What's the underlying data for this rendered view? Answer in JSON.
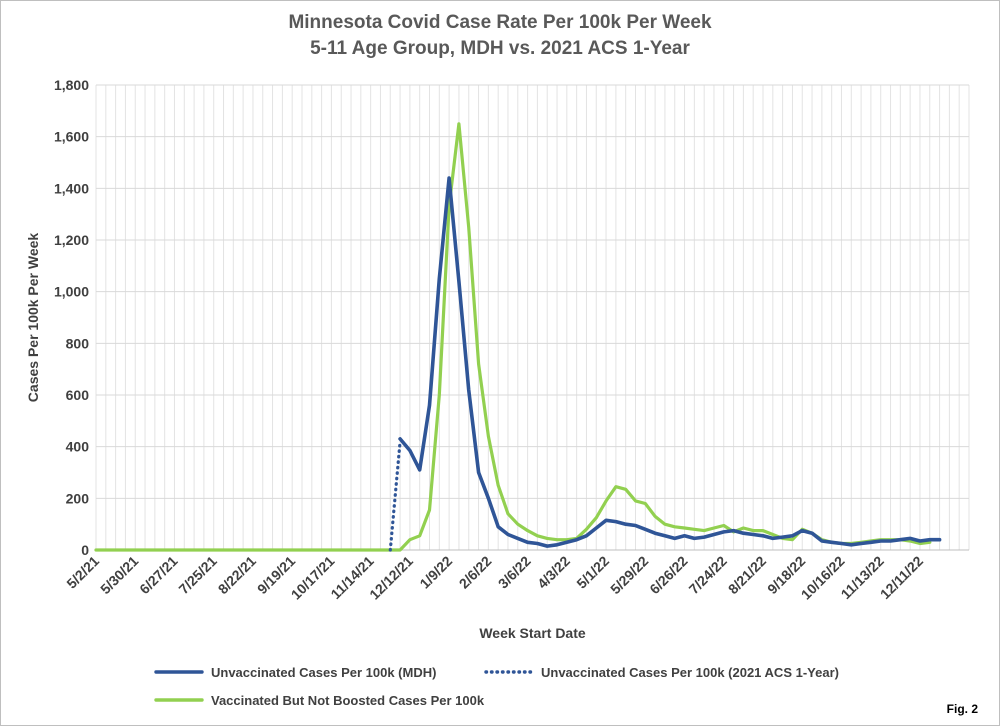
{
  "title_line1": "Minnesota Covid Case Rate Per 100k Per Week",
  "title_line2": "5-11 Age Group, MDH vs. 2021 ACS 1-Year",
  "fig_label": "Fig. 2",
  "chart_data": {
    "type": "line",
    "xlabel": "Week Start Date",
    "ylabel": "Cases Per 100k Per Week",
    "ylim": [
      0,
      1800
    ],
    "yticks": [
      0,
      200,
      400,
      600,
      800,
      1000,
      1200,
      1400,
      1600,
      1800
    ],
    "ytick_labels": [
      "0",
      "200",
      "400",
      "600",
      "800",
      "1,000",
      "1,200",
      "1,400",
      "1,600",
      "1,800"
    ],
    "xtick_labels": [
      "5/2/21",
      "5/30/21",
      "6/27/21",
      "7/25/21",
      "8/22/21",
      "9/19/21",
      "10/17/21",
      "11/14/21",
      "12/12/21",
      "1/9/22",
      "2/6/22",
      "3/6/22",
      "4/3/22",
      "5/1/22",
      "5/29/22",
      "6/26/22",
      "7/24/22",
      "8/21/22",
      "9/18/22",
      "10/16/22",
      "11/13/22",
      "12/11/22"
    ],
    "x_start": "5/2/21",
    "x_interval": "1 week",
    "x_count": 90,
    "grid": true,
    "legend_position": "bottom",
    "series": [
      {
        "name": "Unvaccinated Cases Per 100k (MDH)",
        "color": "#2f5597",
        "style": "solid",
        "start_index": 31,
        "values": [
          430,
          385,
          310,
          560,
          1050,
          1440,
          1040,
          620,
          300,
          200,
          90,
          60,
          45,
          30,
          25,
          15,
          20,
          30,
          40,
          55,
          85,
          115,
          110,
          100,
          95,
          80,
          65,
          55,
          45,
          55,
          45,
          50,
          60,
          70,
          75,
          65,
          60,
          55,
          45,
          50,
          55,
          75,
          65,
          35,
          30,
          25,
          20,
          25,
          30,
          35,
          35,
          40,
          45,
          35,
          40,
          40
        ]
      },
      {
        "name": "Unvaccinated Cases Per 100k (2021 ACS 1-Year)",
        "color": "#2f5597",
        "style": "dotted",
        "start_index": 30,
        "values": [
          0,
          420
        ]
      },
      {
        "name": "Vaccinated But Not Boosted Cases Per 100k",
        "color": "#92d050",
        "style": "solid",
        "start_index": 0,
        "values": [
          0,
          0,
          0,
          0,
          0,
          0,
          0,
          0,
          0,
          0,
          0,
          0,
          0,
          0,
          0,
          0,
          0,
          0,
          0,
          0,
          0,
          0,
          0,
          0,
          0,
          0,
          0,
          0,
          0,
          0,
          0,
          0,
          40,
          55,
          155,
          600,
          1330,
          1650,
          1250,
          720,
          440,
          250,
          140,
          100,
          75,
          55,
          45,
          40,
          40,
          45,
          80,
          125,
          190,
          245,
          235,
          190,
          180,
          130,
          100,
          90,
          85,
          80,
          75,
          85,
          95,
          70,
          85,
          75,
          75,
          60,
          45,
          40,
          80,
          65,
          40,
          30,
          25,
          25,
          30,
          35,
          40,
          40,
          40,
          35,
          25,
          30
        ]
      }
    ]
  }
}
